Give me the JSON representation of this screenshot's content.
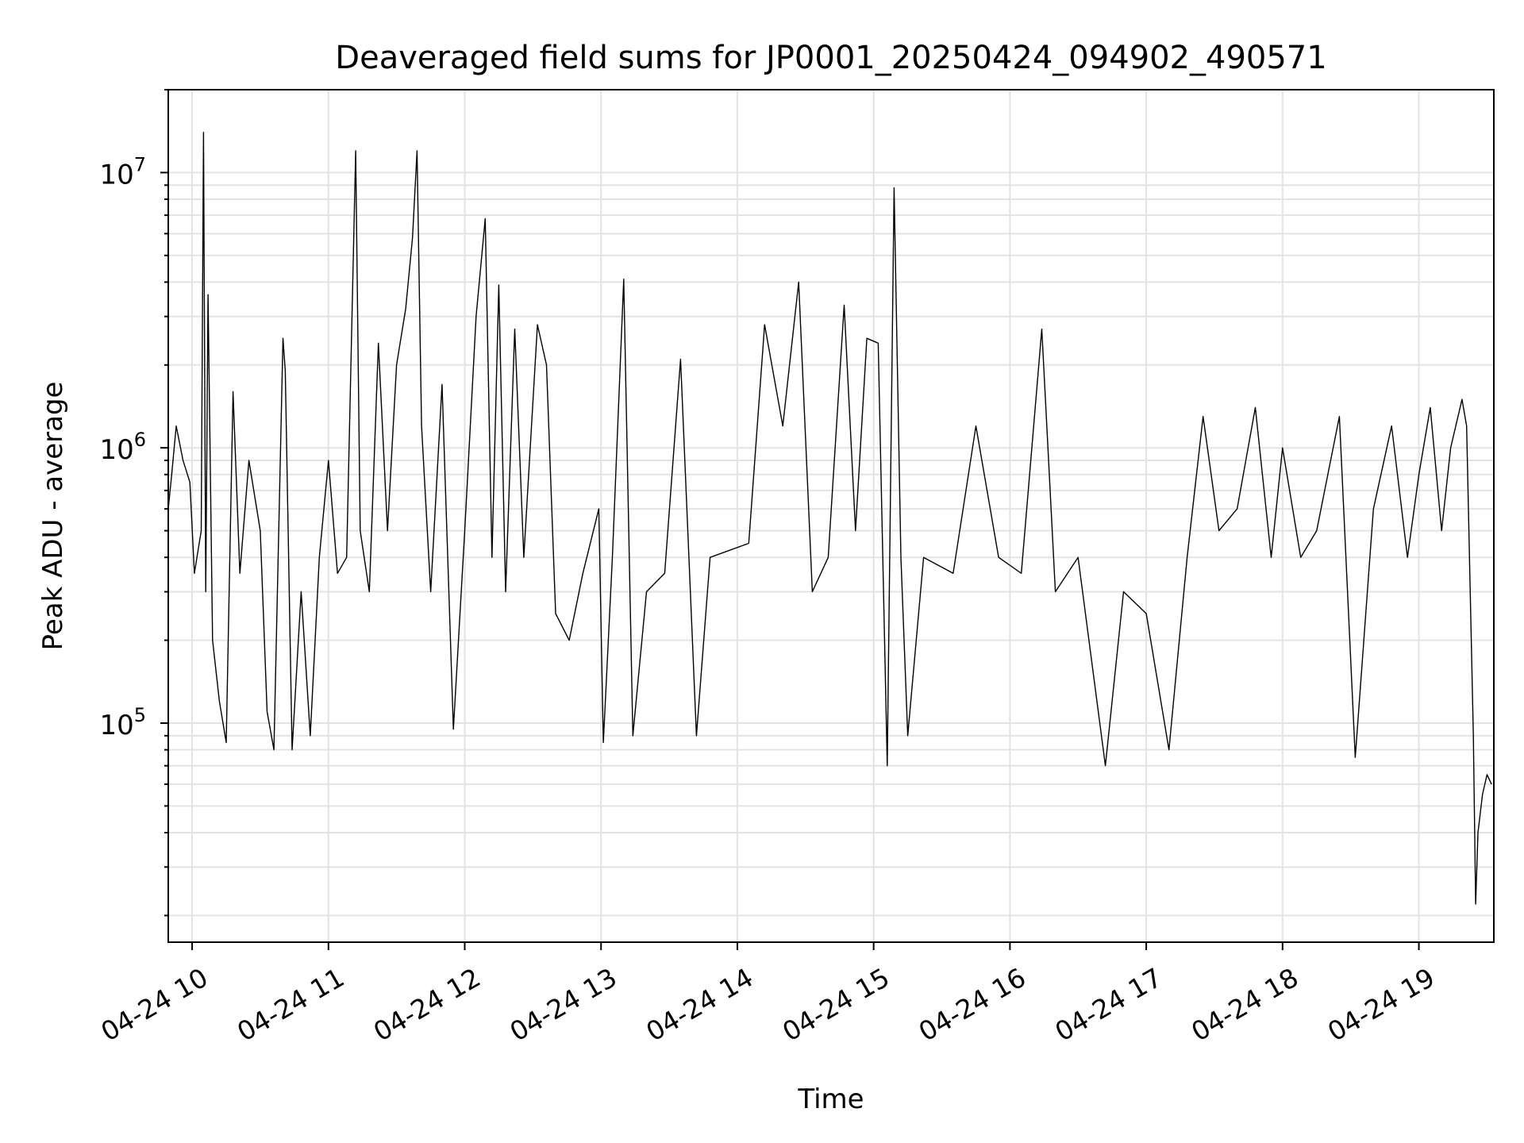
{
  "chart_data": {
    "type": "line",
    "title": "Deaveraged field sums for JP0001_20250424_094902_490571",
    "xlabel": "Time",
    "ylabel": "Peak ADU - average",
    "yscale": "log",
    "ylim": [
      16000,
      20000000
    ],
    "xlim": [
      "2025-04-24 09:49:30",
      "2025-04-24 19:33:00"
    ],
    "grid": true,
    "x_ticks": [
      {
        "t": "2025-04-24 10:00",
        "label": "04-24 10"
      },
      {
        "t": "2025-04-24 11:00",
        "label": "04-24 11"
      },
      {
        "t": "2025-04-24 12:00",
        "label": "04-24 12"
      },
      {
        "t": "2025-04-24 13:00",
        "label": "04-24 13"
      },
      {
        "t": "2025-04-24 14:00",
        "label": "04-24 14"
      },
      {
        "t": "2025-04-24 15:00",
        "label": "04-24 15"
      },
      {
        "t": "2025-04-24 16:00",
        "label": "04-24 16"
      },
      {
        "t": "2025-04-24 17:00",
        "label": "04-24 17"
      },
      {
        "t": "2025-04-24 18:00",
        "label": "04-24 18"
      },
      {
        "t": "2025-04-24 19:00",
        "label": "04-24 19"
      }
    ],
    "y_ticks": [
      {
        "value": 100000,
        "base": "10",
        "exp": "5"
      },
      {
        "value": 1000000,
        "base": "10",
        "exp": "6"
      },
      {
        "value": 10000000,
        "base": "10",
        "exp": "7"
      }
    ],
    "series": [
      {
        "color": "#000000",
        "points": [
          [
            "2025-04-24 09:49:30",
            600000
          ],
          [
            "2025-04-24 09:51",
            800000
          ],
          [
            "2025-04-24 09:53",
            1200000
          ],
          [
            "2025-04-24 09:56",
            900000
          ],
          [
            "2025-04-24 09:59",
            750000
          ],
          [
            "2025-04-24 10:01",
            350000
          ],
          [
            "2025-04-24 10:04",
            500000
          ],
          [
            "2025-04-24 10:05",
            14000000
          ],
          [
            "2025-04-24 10:06",
            300000
          ],
          [
            "2025-04-24 10:07",
            3600000
          ],
          [
            "2025-04-24 10:09",
            200000
          ],
          [
            "2025-04-24 10:12",
            120000
          ],
          [
            "2025-04-24 10:15",
            85000
          ],
          [
            "2025-04-24 10:18",
            1600000
          ],
          [
            "2025-04-24 10:21",
            350000
          ],
          [
            "2025-04-24 10:25",
            900000
          ],
          [
            "2025-04-24 10:30",
            500000
          ],
          [
            "2025-04-24 10:33",
            110000
          ],
          [
            "2025-04-24 10:36",
            80000
          ],
          [
            "2025-04-24 10:40",
            2500000
          ],
          [
            "2025-04-24 10:41",
            1900000
          ],
          [
            "2025-04-24 10:44",
            80000
          ],
          [
            "2025-04-24 10:48",
            300000
          ],
          [
            "2025-04-24 10:52",
            90000
          ],
          [
            "2025-04-24 10:56",
            400000
          ],
          [
            "2025-04-24 11:00",
            900000
          ],
          [
            "2025-04-24 11:04",
            350000
          ],
          [
            "2025-04-24 11:08",
            400000
          ],
          [
            "2025-04-24 11:12",
            12000000
          ],
          [
            "2025-04-24 11:14",
            500000
          ],
          [
            "2025-04-24 11:18",
            300000
          ],
          [
            "2025-04-24 11:22",
            2400000
          ],
          [
            "2025-04-24 11:26",
            500000
          ],
          [
            "2025-04-24 11:30",
            2000000
          ],
          [
            "2025-04-24 11:34",
            3200000
          ],
          [
            "2025-04-24 11:37",
            5800000
          ],
          [
            "2025-04-24 11:39",
            12000000
          ],
          [
            "2025-04-24 11:41",
            1200000
          ],
          [
            "2025-04-24 11:45",
            300000
          ],
          [
            "2025-04-24 11:50",
            1700000
          ],
          [
            "2025-04-24 11:55",
            95000
          ],
          [
            "2025-04-24 12:00",
            500000
          ],
          [
            "2025-04-24 12:05",
            3000000
          ],
          [
            "2025-04-24 12:09",
            6800000
          ],
          [
            "2025-04-24 12:12",
            400000
          ],
          [
            "2025-04-24 12:15",
            3900000
          ],
          [
            "2025-04-24 12:18",
            300000
          ],
          [
            "2025-04-24 12:22",
            2700000
          ],
          [
            "2025-04-24 12:26",
            400000
          ],
          [
            "2025-04-24 12:32",
            2800000
          ],
          [
            "2025-04-24 12:36",
            2000000
          ],
          [
            "2025-04-24 12:40",
            250000
          ],
          [
            "2025-04-24 12:46",
            200000
          ],
          [
            "2025-04-24 12:52",
            350000
          ],
          [
            "2025-04-24 12:59",
            600000
          ],
          [
            "2025-04-24 13:01",
            85000
          ],
          [
            "2025-04-24 13:05",
            400000
          ],
          [
            "2025-04-24 13:10",
            4100000
          ],
          [
            "2025-04-24 13:14",
            90000
          ],
          [
            "2025-04-24 13:20",
            300000
          ],
          [
            "2025-04-24 13:28",
            350000
          ],
          [
            "2025-04-24 13:35",
            2100000
          ],
          [
            "2025-04-24 13:42",
            90000
          ],
          [
            "2025-04-24 13:48",
            400000
          ],
          [
            "2025-04-24 14:05",
            450000
          ],
          [
            "2025-04-24 14:12",
            2800000
          ],
          [
            "2025-04-24 14:20",
            1200000
          ],
          [
            "2025-04-24 14:27",
            4000000
          ],
          [
            "2025-04-24 14:33",
            300000
          ],
          [
            "2025-04-24 14:40",
            400000
          ],
          [
            "2025-04-24 14:47",
            3300000
          ],
          [
            "2025-04-24 14:52",
            500000
          ],
          [
            "2025-04-24 14:57",
            2500000
          ],
          [
            "2025-04-24 15:02",
            2400000
          ],
          [
            "2025-04-24 15:06",
            70000
          ],
          [
            "2025-04-24 15:09",
            8800000
          ],
          [
            "2025-04-24 15:12",
            400000
          ],
          [
            "2025-04-24 15:15",
            90000
          ],
          [
            "2025-04-24 15:22",
            400000
          ],
          [
            "2025-04-24 15:35",
            350000
          ],
          [
            "2025-04-24 15:45",
            1200000
          ],
          [
            "2025-04-24 15:55",
            400000
          ],
          [
            "2025-04-24 16:05",
            350000
          ],
          [
            "2025-04-24 16:14",
            2700000
          ],
          [
            "2025-04-24 16:20",
            300000
          ],
          [
            "2025-04-24 16:30",
            400000
          ],
          [
            "2025-04-24 16:42",
            70000
          ],
          [
            "2025-04-24 16:50",
            300000
          ],
          [
            "2025-04-24 17:00",
            250000
          ],
          [
            "2025-04-24 17:10",
            80000
          ],
          [
            "2025-04-24 17:18",
            400000
          ],
          [
            "2025-04-24 17:25",
            1300000
          ],
          [
            "2025-04-24 17:32",
            500000
          ],
          [
            "2025-04-24 17:40",
            600000
          ],
          [
            "2025-04-24 17:48",
            1400000
          ],
          [
            "2025-04-24 17:55",
            400000
          ],
          [
            "2025-04-24 18:00",
            1000000
          ],
          [
            "2025-04-24 18:08",
            400000
          ],
          [
            "2025-04-24 18:15",
            500000
          ],
          [
            "2025-04-24 18:25",
            1300000
          ],
          [
            "2025-04-24 18:32",
            75000
          ],
          [
            "2025-04-24 18:40",
            600000
          ],
          [
            "2025-04-24 18:48",
            1200000
          ],
          [
            "2025-04-24 18:55",
            400000
          ],
          [
            "2025-04-24 19:00",
            800000
          ],
          [
            "2025-04-24 19:05",
            1400000
          ],
          [
            "2025-04-24 19:10",
            500000
          ],
          [
            "2025-04-24 19:14",
            1000000
          ],
          [
            "2025-04-24 19:19",
            1500000
          ],
          [
            "2025-04-24 19:21",
            1200000
          ],
          [
            "2025-04-24 19:24",
            90000
          ],
          [
            "2025-04-24 19:25",
            22000
          ],
          [
            "2025-04-24 19:26",
            40000
          ],
          [
            "2025-04-24 19:28",
            55000
          ],
          [
            "2025-04-24 19:30",
            65000
          ],
          [
            "2025-04-24 19:32",
            60000
          ]
        ]
      }
    ]
  }
}
